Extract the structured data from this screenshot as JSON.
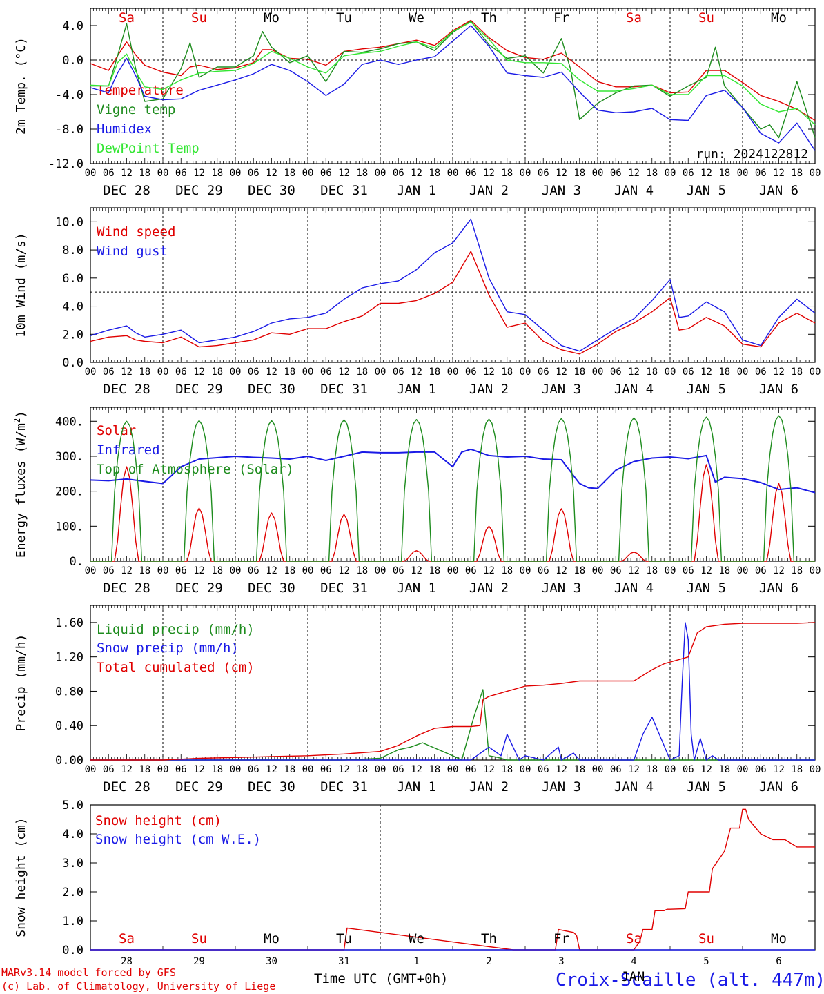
{
  "colors": {
    "red": "#e00000",
    "green": "#1e8c1e",
    "blue": "#1a1ae6",
    "lightgreen": "#33e633",
    "weekend": "#e00000",
    "weekday": "#000000"
  },
  "x_axis": {
    "range_hours": [
      0,
      240
    ],
    "hour_ticks": [
      "00",
      "06",
      "12",
      "18"
    ],
    "date_labels": [
      "DEC 28",
      "DEC 29",
      "DEC 30",
      "DEC 31",
      "JAN  1",
      "JAN  2",
      "JAN  3",
      "JAN  4",
      "JAN  5",
      "JAN  6"
    ],
    "day_names": [
      "Sa",
      "Su",
      "Mo",
      "Tu",
      "We",
      "Th",
      "Fr",
      "Sa",
      "Su",
      "Mo"
    ],
    "weekend_flags": [
      true,
      true,
      false,
      false,
      false,
      false,
      false,
      true,
      true,
      false
    ],
    "bottom_day_numbers": [
      "28",
      "29",
      "30",
      "31",
      "1",
      "2",
      "3",
      "4",
      "5",
      "6"
    ],
    "bottom_month_label": "JAN",
    "xlabel": "Time UTC (GMT+0h)"
  },
  "footer": {
    "credit_line1": "MARv3.14 model forced by GFS",
    "credit_line2": "(c) Lab. of Climatology, University of Liege",
    "station": "Croix-Scaille (alt. 447m)"
  },
  "chart_data": [
    {
      "type": "line",
      "ylabel": "2m Temp. (°C)",
      "ylim": [
        -12,
        6
      ],
      "yticks": [
        4,
        0,
        -4,
        -8,
        -12
      ],
      "ytick_labels": [
        "4.0",
        "0.0",
        "-4.0",
        "-8.0",
        "-12.0"
      ],
      "ref_line": 0,
      "annotation": "run: 2024122812",
      "series": [
        {
          "name": "Temperature",
          "color": "#e00000",
          "x": [
            0,
            6,
            9,
            12,
            15,
            18,
            24,
            30,
            33,
            36,
            42,
            48,
            54,
            57,
            60,
            66,
            72,
            78,
            84,
            90,
            96,
            102,
            108,
            114,
            120,
            126,
            132,
            138,
            144,
            150,
            156,
            162,
            168,
            174,
            180,
            186,
            192,
            198,
            204,
            210,
            216,
            222,
            228,
            234,
            240
          ],
          "y": [
            -0.4,
            -1.2,
            0.5,
            2.1,
            0.6,
            -0.6,
            -1.4,
            -1.8,
            -0.8,
            -0.6,
            -1.1,
            -0.9,
            -0.3,
            1.2,
            1.2,
            0.2,
            0.1,
            -0.6,
            1.0,
            1.3,
            1.5,
            1.9,
            2.3,
            1.7,
            3.4,
            4.6,
            2.6,
            1.1,
            0.3,
            0.1,
            0.8,
            -0.8,
            -2.5,
            -3.1,
            -3.1,
            -2.9,
            -3.8,
            -3.7,
            -1.2,
            -1.2,
            -2.6,
            -4.1,
            -4.8,
            -5.7,
            -7.0
          ]
        },
        {
          "name": "Vigne temp",
          "color": "#1e8c1e",
          "x": [
            0,
            6,
            9,
            12,
            15,
            18,
            24,
            30,
            33,
            36,
            42,
            48,
            54,
            57,
            60,
            66,
            72,
            78,
            84,
            90,
            96,
            102,
            108,
            114,
            120,
            126,
            132,
            138,
            144,
            150,
            156,
            159,
            162,
            168,
            174,
            180,
            186,
            192,
            198,
            204,
            207,
            210,
            216,
            222,
            225,
            228,
            234,
            240
          ],
          "y": [
            -3.0,
            -3.0,
            0.5,
            4.2,
            -1.0,
            -4.8,
            -4.5,
            -1.0,
            2.0,
            -2.0,
            -0.8,
            -0.8,
            0.5,
            3.3,
            1.5,
            -0.3,
            0.5,
            -2.5,
            1.0,
            0.9,
            1.3,
            1.9,
            2.1,
            1.1,
            3.2,
            4.5,
            1.8,
            0.2,
            0.5,
            -1.5,
            2.5,
            -1.0,
            -6.9,
            -5.0,
            -3.8,
            -3.0,
            -2.9,
            -4.2,
            -3.0,
            -2.0,
            1.5,
            -3.0,
            -5.5,
            -8.0,
            -7.5,
            -9.0,
            -2.5,
            -9.0
          ]
        },
        {
          "name": "Humidex",
          "color": "#1a1ae6",
          "x": [
            0,
            6,
            9,
            12,
            15,
            18,
            24,
            30,
            36,
            42,
            48,
            54,
            60,
            66,
            72,
            78,
            84,
            90,
            96,
            102,
            108,
            114,
            120,
            126,
            132,
            138,
            144,
            150,
            156,
            162,
            168,
            174,
            180,
            186,
            192,
            198,
            204,
            210,
            216,
            222,
            228,
            234,
            240
          ],
          "y": [
            -3.2,
            -3.8,
            -1.5,
            0.2,
            -1.8,
            -4.2,
            -4.6,
            -4.5,
            -3.5,
            -2.9,
            -2.3,
            -1.6,
            -0.5,
            -1.2,
            -2.5,
            -4.1,
            -2.8,
            -0.5,
            0.0,
            -0.5,
            0.0,
            0.4,
            2.2,
            4.0,
            1.6,
            -1.5,
            -1.8,
            -2.0,
            -1.4,
            -3.7,
            -5.8,
            -6.1,
            -6.0,
            -5.6,
            -6.9,
            -7.0,
            -4.1,
            -3.5,
            -5.5,
            -8.5,
            -9.6,
            -7.3,
            -10.5
          ]
        },
        {
          "name": "DewPoint Temp",
          "color": "#33e633",
          "x": [
            0,
            6,
            9,
            12,
            15,
            18,
            24,
            30,
            36,
            42,
            48,
            54,
            60,
            66,
            72,
            78,
            84,
            90,
            96,
            102,
            108,
            114,
            120,
            126,
            132,
            138,
            144,
            150,
            156,
            162,
            168,
            174,
            180,
            186,
            192,
            198,
            204,
            210,
            216,
            222,
            228,
            234,
            240
          ],
          "y": [
            -2.9,
            -3.0,
            -0.3,
            0.7,
            -1.3,
            -3.1,
            -3.4,
            -2.3,
            -1.5,
            -1.3,
            -1.2,
            -0.4,
            1.0,
            0.2,
            -0.8,
            -1.5,
            0.5,
            0.8,
            1.0,
            1.6,
            2.1,
            1.4,
            3.3,
            4.4,
            2.4,
            0.0,
            -0.3,
            -0.3,
            -0.4,
            -2.3,
            -3.6,
            -3.6,
            -3.3,
            -2.9,
            -4.0,
            -4.0,
            -1.8,
            -1.8,
            -3.0,
            -5.1,
            -6.0,
            -5.6,
            -7.5
          ]
        }
      ]
    },
    {
      "type": "line",
      "ylabel": "10m Wind (m/s)",
      "ylim": [
        0,
        11
      ],
      "yticks": [
        10,
        8,
        6,
        4,
        2,
        0
      ],
      "ytick_labels": [
        "10.0",
        "8.0",
        "6.0",
        "4.0",
        "2.0",
        "0.0"
      ],
      "ref_line": 5,
      "series": [
        {
          "name": "Wind speed",
          "color": "#e00000",
          "x": [
            0,
            6,
            12,
            15,
            18,
            24,
            30,
            36,
            42,
            48,
            54,
            60,
            66,
            72,
            78,
            84,
            90,
            96,
            102,
            108,
            114,
            120,
            126,
            132,
            138,
            144,
            150,
            156,
            162,
            168,
            174,
            180,
            186,
            192,
            195,
            198,
            204,
            210,
            216,
            222,
            228,
            234,
            240
          ],
          "y": [
            1.5,
            1.8,
            1.9,
            1.6,
            1.5,
            1.4,
            1.8,
            1.1,
            1.2,
            1.4,
            1.6,
            2.1,
            2.0,
            2.4,
            2.4,
            2.9,
            3.3,
            4.2,
            4.2,
            4.4,
            4.9,
            5.7,
            7.9,
            4.8,
            2.5,
            2.8,
            1.5,
            0.9,
            0.6,
            1.3,
            2.2,
            2.8,
            3.6,
            4.6,
            2.3,
            2.4,
            3.2,
            2.6,
            1.3,
            1.1,
            2.8,
            3.5,
            2.8
          ]
        },
        {
          "name": "Wind gust",
          "color": "#1a1ae6",
          "x": [
            0,
            6,
            12,
            15,
            18,
            24,
            30,
            36,
            42,
            48,
            54,
            60,
            66,
            72,
            78,
            84,
            90,
            96,
            102,
            108,
            114,
            120,
            126,
            132,
            138,
            144,
            150,
            156,
            162,
            168,
            174,
            180,
            186,
            192,
            195,
            198,
            204,
            210,
            216,
            222,
            228,
            234,
            240
          ],
          "y": [
            1.9,
            2.3,
            2.6,
            2.1,
            1.8,
            2.0,
            2.3,
            1.4,
            1.6,
            1.8,
            2.2,
            2.8,
            3.1,
            3.2,
            3.5,
            4.5,
            5.3,
            5.6,
            5.8,
            6.6,
            7.8,
            8.5,
            10.2,
            6.0,
            3.6,
            3.4,
            2.3,
            1.2,
            0.8,
            1.6,
            2.4,
            3.1,
            4.4,
            5.9,
            3.2,
            3.3,
            4.3,
            3.6,
            1.6,
            1.2,
            3.2,
            4.5,
            3.5
          ]
        }
      ]
    },
    {
      "type": "line",
      "ylabel": "Energy fluxes (W/m²)",
      "ylim": [
        0,
        440
      ],
      "yticks": [
        400,
        300,
        200,
        100,
        0
      ],
      "ytick_labels": [
        "400.",
        "300.",
        "200.",
        "100.",
        "0."
      ],
      "series": [
        {
          "name": "Solar",
          "color": "#e00000",
          "peaks": [
            270,
            152,
            138,
            134,
            30,
            100,
            150,
            26,
            276,
            222
          ]
        },
        {
          "name": "Infrared",
          "color": "#1a1ae6",
          "x": [
            0,
            6,
            12,
            18,
            24,
            30,
            36,
            42,
            48,
            54,
            60,
            66,
            72,
            78,
            84,
            90,
            96,
            102,
            108,
            114,
            120,
            123,
            126,
            132,
            138,
            144,
            150,
            156,
            162,
            165,
            168,
            174,
            180,
            186,
            192,
            198,
            204,
            207,
            210,
            216,
            222,
            228,
            234,
            240
          ],
          "y": [
            232,
            230,
            235,
            228,
            222,
            270,
            292,
            296,
            300,
            297,
            295,
            292,
            300,
            288,
            300,
            312,
            310,
            310,
            312,
            312,
            270,
            312,
            320,
            302,
            298,
            300,
            292,
            290,
            222,
            210,
            208,
            260,
            285,
            295,
            298,
            293,
            302,
            226,
            240,
            236,
            225,
            205,
            210,
            196
          ]
        },
        {
          "name": "Top of Atmosphere (Solar)",
          "color": "#1e8c1e",
          "peaks": [
            400,
            402,
            402,
            404,
            405,
            406,
            408,
            410,
            412,
            416
          ]
        }
      ]
    },
    {
      "type": "line",
      "ylabel": "Precip (mm/h)",
      "ylim": [
        0,
        1.8
      ],
      "yticks": [
        1.6,
        1.2,
        0.8,
        0.4,
        0
      ],
      "ytick_labels": [
        "1.60",
        "1.20",
        "0.80",
        "0.40",
        "0.00"
      ],
      "series": [
        {
          "name": "Liquid precip (mm/h)",
          "color": "#1e8c1e",
          "x": [
            0,
            84,
            96,
            102,
            106,
            110,
            114,
            120,
            123,
            127,
            130,
            132,
            135,
            138,
            144,
            240
          ],
          "y": [
            0,
            0,
            0.02,
            0.12,
            0.15,
            0.2,
            0.14,
            0.05,
            0,
            0.5,
            0.82,
            0.05,
            0.03,
            0,
            0,
            0
          ]
        },
        {
          "name": "Snow precip (mm/h)",
          "color": "#1a1ae6",
          "x": [
            0,
            120,
            126,
            132,
            136,
            138,
            142,
            144,
            150,
            155,
            156,
            160,
            162,
            180,
            183,
            186,
            189,
            192,
            195,
            196,
            197,
            198,
            199,
            200,
            202,
            204,
            206,
            208,
            240
          ],
          "y": [
            0,
            0,
            0,
            0.15,
            0.05,
            0.3,
            0,
            0.05,
            0,
            0.15,
            0,
            0.08,
            0,
            0,
            0.3,
            0.5,
            0.25,
            0,
            0.05,
            0.9,
            1.6,
            1.4,
            0.3,
            0,
            0.25,
            0,
            0.05,
            0,
            0
          ]
        },
        {
          "name": "Total cumulated (cm)",
          "color": "#e00000",
          "x": [
            0,
            24,
            36,
            48,
            60,
            72,
            84,
            96,
            102,
            108,
            114,
            120,
            126,
            129,
            130,
            132,
            138,
            144,
            150,
            156,
            162,
            168,
            174,
            180,
            186,
            190,
            195,
            198,
            201,
            204,
            210,
            216,
            222,
            228,
            234,
            240
          ],
          "y": [
            0,
            0,
            0.02,
            0.03,
            0.04,
            0.05,
            0.07,
            0.1,
            0.17,
            0.28,
            0.37,
            0.39,
            0.39,
            0.4,
            0.7,
            0.74,
            0.8,
            0.86,
            0.87,
            0.89,
            0.92,
            0.92,
            0.92,
            0.92,
            1.05,
            1.12,
            1.17,
            1.2,
            1.48,
            1.55,
            1.58,
            1.59,
            1.59,
            1.59,
            1.59,
            1.6
          ]
        }
      ]
    },
    {
      "type": "line",
      "ylabel": "Snow height (cm)",
      "ylim": [
        0,
        5
      ],
      "yticks": [
        5,
        4,
        3,
        2,
        1,
        0
      ],
      "ytick_labels": [
        "5.0",
        "4.0",
        "3.0",
        "2.0",
        "1.0",
        "0.0"
      ],
      "series": [
        {
          "name": "Snow height (cm)",
          "color": "#e00000",
          "x": [
            0,
            82,
            84,
            85,
            140,
            141,
            142,
            154,
            155,
            160,
            161,
            162,
            174,
            180,
            182,
            183,
            186,
            187,
            190,
            191,
            192,
            197,
            198,
            205,
            206,
            210,
            212,
            213,
            215,
            216,
            217,
            218,
            222,
            226,
            230,
            234,
            240
          ],
          "y": [
            0,
            0,
            0,
            0.75,
            0,
            0,
            0,
            0,
            0.7,
            0.6,
            0.5,
            0,
            0,
            0,
            0.3,
            0.7,
            0.7,
            1.35,
            1.35,
            1.4,
            1.4,
            1.42,
            2.0,
            2.0,
            2.8,
            3.4,
            4.2,
            4.2,
            4.2,
            4.85,
            4.85,
            4.5,
            4.0,
            3.8,
            3.8,
            3.55,
            3.55
          ]
        },
        {
          "name": "Snow height (cm W.E.)",
          "color": "#1a1ae6",
          "x": [
            0,
            240
          ],
          "y": [
            0,
            0
          ]
        }
      ]
    }
  ]
}
